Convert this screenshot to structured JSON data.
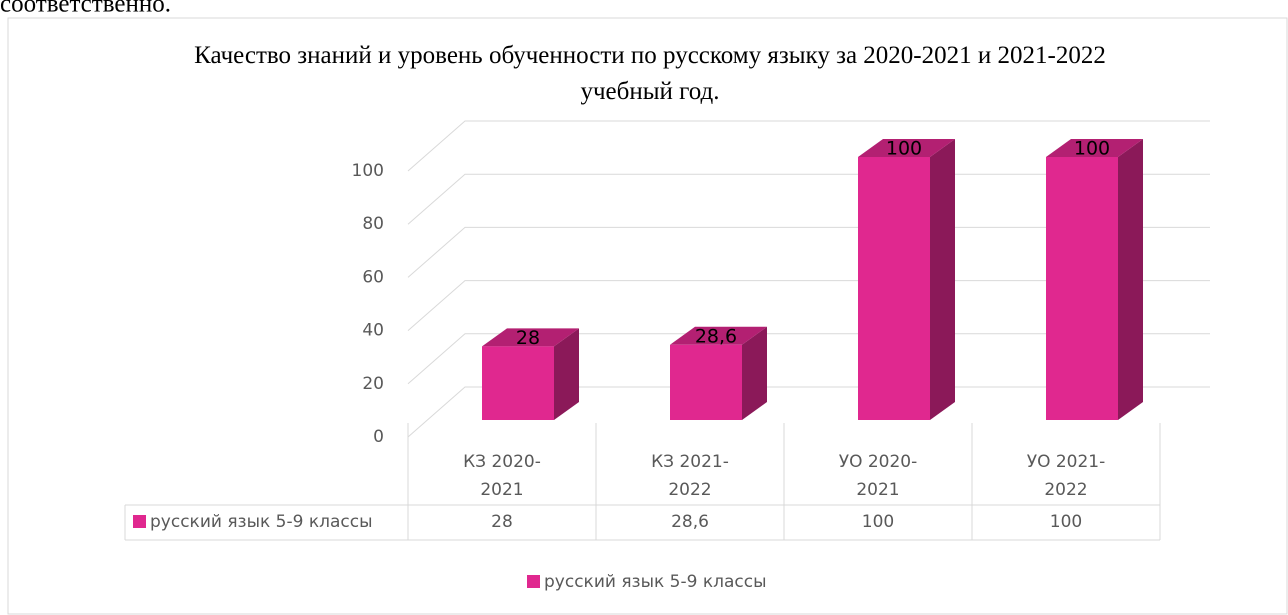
{
  "text_above": "соответственно.",
  "chart_data": {
    "type": "bar3d",
    "title": "Качество знаний и уровень обученности по русскому языку за 2020-2021 и 2021-2022 учебный год.",
    "categories": [
      "КЗ 2020-2021",
      "КЗ 2021-2022",
      "УО 2020-2021",
      "УО 2021-2022"
    ],
    "series": [
      {
        "name": "русский язык 5-9 классы",
        "color": "#e0288f",
        "values": [
          28,
          28.6,
          100,
          100
        ],
        "value_labels": [
          "28",
          "28,6",
          "100",
          "100"
        ]
      }
    ],
    "ylim": [
      0,
      100
    ],
    "yticks": [
      0,
      20,
      40,
      60,
      80,
      100
    ],
    "grid": true,
    "legend": "bottom",
    "data_table": true
  }
}
